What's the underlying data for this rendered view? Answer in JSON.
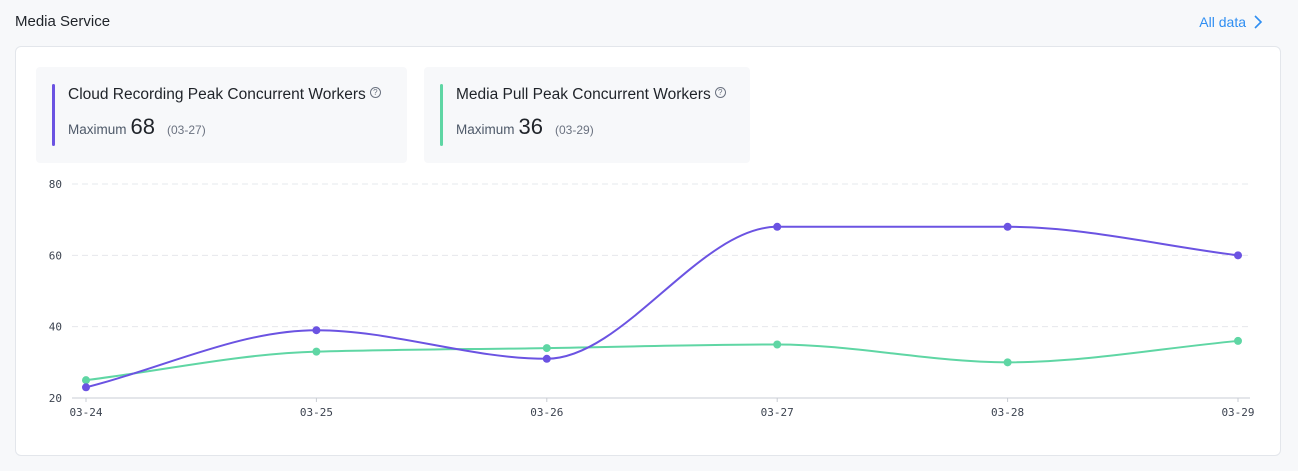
{
  "header": {
    "title": "Media Service",
    "all_data_label": "All data"
  },
  "metrics": [
    {
      "title": "Cloud Recording Peak Concurrent Workers",
      "max_label": "Maximum",
      "max_value": "68",
      "max_date": "(03-27)",
      "color": "#6b53e2"
    },
    {
      "title": "Media Pull Peak Concurrent Workers",
      "max_label": "Maximum",
      "max_value": "36",
      "max_date": "(03-29)",
      "color": "#5fd6a4"
    }
  ],
  "chart_data": {
    "type": "line",
    "categories": [
      "03-24",
      "03-25",
      "03-26",
      "03-27",
      "03-28",
      "03-29"
    ],
    "series": [
      {
        "name": "Cloud Recording Peak Concurrent Workers",
        "color": "#6b53e2",
        "values": [
          23,
          39,
          31,
          68,
          68,
          60
        ]
      },
      {
        "name": "Media Pull Peak Concurrent Workers",
        "color": "#5fd6a4",
        "values": [
          25,
          33,
          34,
          35,
          30,
          36
        ]
      }
    ],
    "ylim": [
      20,
      80
    ],
    "yticks": [
      20,
      40,
      60,
      80
    ],
    "grid": true,
    "title": "",
    "xlabel": "",
    "ylabel": ""
  }
}
